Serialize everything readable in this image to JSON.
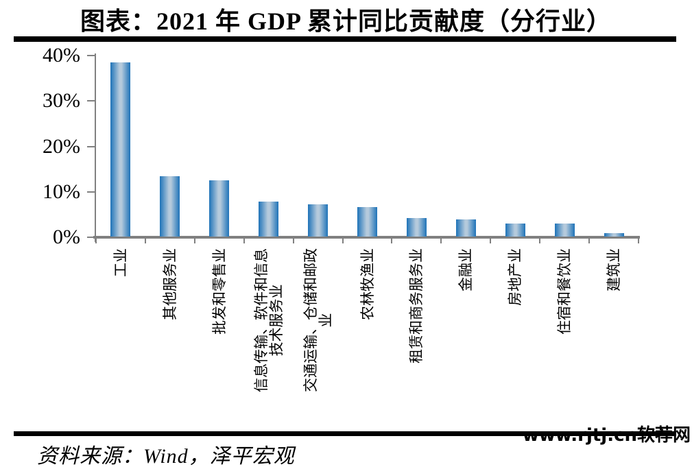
{
  "title": "图表：2021 年 GDP 累计同比贡献度（分行业）",
  "source": "资料来源：Wind，泽平宏观",
  "watermark": "www.rjtj.cn软荐网",
  "chart_data": {
    "type": "bar",
    "title": "图表：2021 年 GDP 累计同比贡献度（分行业）",
    "categories": [
      "工业",
      "其他服务业",
      "批发和零售业",
      "信息传输、软件和信息\n技术服务业",
      "交通运输、仓储和邮政\n业",
      "农林牧渔业",
      "租赁和商务服务业",
      "金融业",
      "房地产业",
      "住宿和餐饮业",
      "建筑业"
    ],
    "values": [
      38.3,
      13.3,
      12.4,
      7.7,
      7.1,
      6.5,
      4.1,
      3.8,
      2.9,
      2.8,
      0.8
    ],
    "unit": "%",
    "xlabel": "",
    "ylabel": "",
    "ylim": [
      0,
      40
    ],
    "yticks": [
      "0%",
      "10%",
      "20%",
      "30%",
      "40%"
    ],
    "grid": false,
    "legend": null,
    "colors": {
      "bar_edge": "#1e73b8",
      "bar_mid": "#b5cadc",
      "axis": "#808080"
    }
  }
}
